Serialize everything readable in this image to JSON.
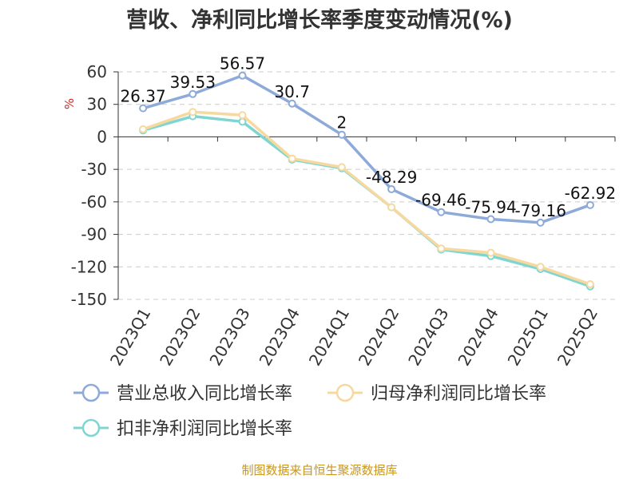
{
  "chart_data": {
    "type": "line",
    "title": "营收、净利同比增长率季度变动情况(%)",
    "ylabel": "%",
    "categories": [
      "2023Q1",
      "2023Q2",
      "2023Q3",
      "2023Q4",
      "2024Q1",
      "2024Q2",
      "2024Q3",
      "2024Q4",
      "2025Q1",
      "2025Q2"
    ],
    "ylim": [
      -150,
      60
    ],
    "yticks": [
      60,
      30,
      0,
      -30,
      -60,
      -90,
      -120,
      -150
    ],
    "grid": true,
    "legend_position": "bottom",
    "series": [
      {
        "name": "营业总收入同比增长率",
        "color": "#8eaad8",
        "values": [
          26.37,
          39.53,
          56.57,
          30.7,
          2,
          -48.29,
          -69.46,
          -75.94,
          -79.16,
          -62.92
        ],
        "labels": [
          "26.37",
          "39.53",
          "56.57",
          "30.7",
          "2",
          "-48.29",
          "-69.46",
          "-75.94",
          "-79.16",
          "-62.92"
        ]
      },
      {
        "name": "归母净利润同比增长率",
        "color": "#f7d9a0",
        "values": [
          7,
          23,
          20,
          -20,
          -28,
          -65,
          -103,
          -107,
          -120,
          -136
        ]
      },
      {
        "name": "扣非净利润同比增长率",
        "color": "#7fd6d0",
        "values": [
          6,
          19,
          14,
          -21,
          -29,
          -65,
          -104,
          -110,
          -122,
          -138
        ]
      }
    ],
    "source": "制图数据来自恒生聚源数据库"
  }
}
